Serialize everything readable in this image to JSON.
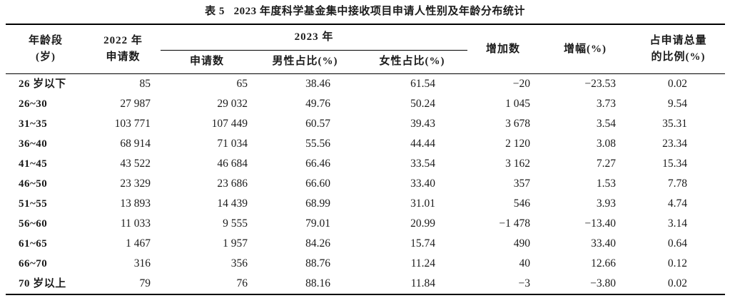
{
  "title": "表 5   2023 年度科学基金集中接收项目申请人性别及年龄分布统计",
  "colors": {
    "ink": "#1b1b1b",
    "background": "#ffffff",
    "rule": "#000000"
  },
  "table": {
    "headers": {
      "age": "年龄段\n(岁)",
      "apps_2022": "2022 年\n申请数",
      "group_2023": "2023 年",
      "apps_2023": "申请数",
      "male_pct": "男性占比(%)",
      "female_pct": "女性占比(%)",
      "increase": "增加数",
      "growth_pct": "增幅(%)",
      "share_pct": "占申请总量\n的比例(%)"
    },
    "columns": [
      "age",
      "apps_2022",
      "apps_2023",
      "male_pct",
      "female_pct",
      "increase",
      "growth_pct",
      "share_pct"
    ],
    "rows": [
      {
        "age": "26 岁以下",
        "apps_2022": "85",
        "apps_2023": "65",
        "male_pct": "38.46",
        "female_pct": "61.54",
        "increase": "−20",
        "growth_pct": "−23.53",
        "share_pct": "0.02"
      },
      {
        "age": "26~30",
        "apps_2022": "27 987",
        "apps_2023": "29 032",
        "male_pct": "49.76",
        "female_pct": "50.24",
        "increase": "1 045",
        "growth_pct": "3.73",
        "share_pct": "9.54"
      },
      {
        "age": "31~35",
        "apps_2022": "103 771",
        "apps_2023": "107 449",
        "male_pct": "60.57",
        "female_pct": "39.43",
        "increase": "3 678",
        "growth_pct": "3.54",
        "share_pct": "35.31"
      },
      {
        "age": "36~40",
        "apps_2022": "68 914",
        "apps_2023": "71 034",
        "male_pct": "55.56",
        "female_pct": "44.44",
        "increase": "2 120",
        "growth_pct": "3.08",
        "share_pct": "23.34"
      },
      {
        "age": "41~45",
        "apps_2022": "43 522",
        "apps_2023": "46 684",
        "male_pct": "66.46",
        "female_pct": "33.54",
        "increase": "3 162",
        "growth_pct": "7.27",
        "share_pct": "15.34"
      },
      {
        "age": "46~50",
        "apps_2022": "23 329",
        "apps_2023": "23 686",
        "male_pct": "66.60",
        "female_pct": "33.40",
        "increase": "357",
        "growth_pct": "1.53",
        "share_pct": "7.78"
      },
      {
        "age": "51~55",
        "apps_2022": "13 893",
        "apps_2023": "14 439",
        "male_pct": "68.99",
        "female_pct": "31.01",
        "increase": "546",
        "growth_pct": "3.93",
        "share_pct": "4.74"
      },
      {
        "age": "56~60",
        "apps_2022": "11 033",
        "apps_2023": "9 555",
        "male_pct": "79.01",
        "female_pct": "20.99",
        "increase": "−1 478",
        "growth_pct": "−13.40",
        "share_pct": "3.14"
      },
      {
        "age": "61~65",
        "apps_2022": "1 467",
        "apps_2023": "1 957",
        "male_pct": "84.26",
        "female_pct": "15.74",
        "increase": "490",
        "growth_pct": "33.40",
        "share_pct": "0.64"
      },
      {
        "age": "66~70",
        "apps_2022": "316",
        "apps_2023": "356",
        "male_pct": "88.76",
        "female_pct": "11.24",
        "increase": "40",
        "growth_pct": "12.66",
        "share_pct": "0.12"
      },
      {
        "age": "70 岁以上",
        "apps_2022": "79",
        "apps_2023": "76",
        "male_pct": "88.16",
        "female_pct": "11.84",
        "increase": "−3",
        "growth_pct": "−3.80",
        "share_pct": "0.02"
      }
    ]
  }
}
